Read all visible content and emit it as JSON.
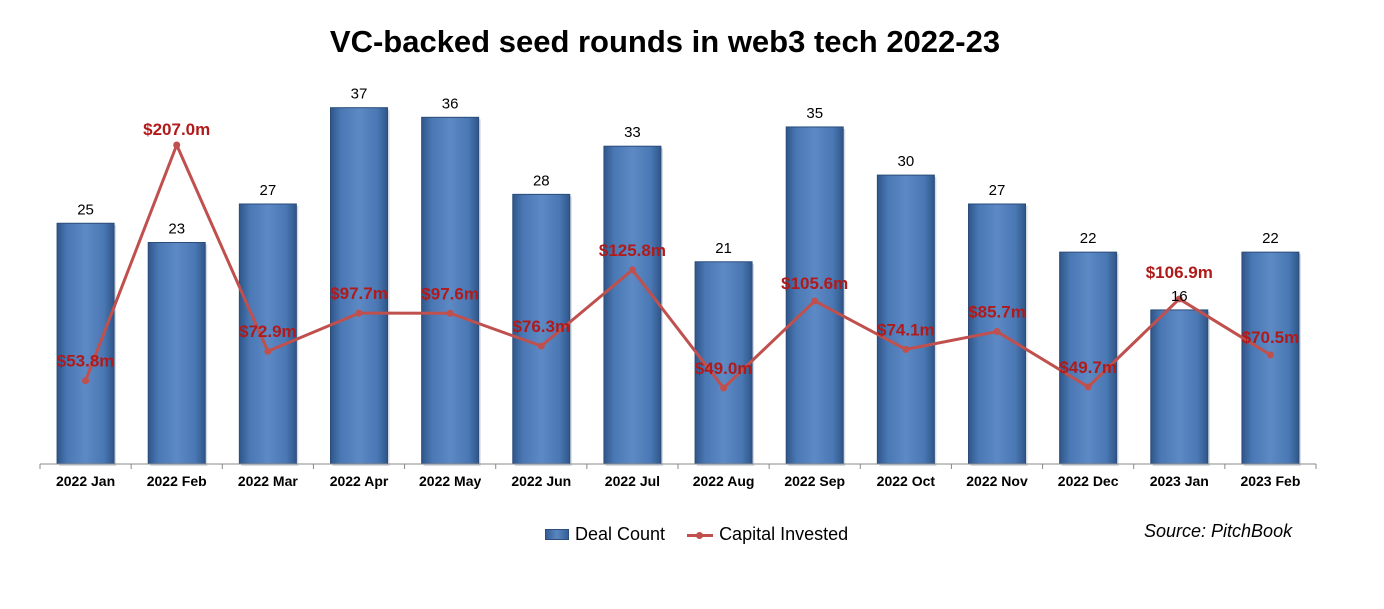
{
  "chart_data": {
    "type": "bar",
    "title": "VC-backed seed rounds in web3 tech 2022-23",
    "categories": [
      "2022 Jan",
      "2022 Feb",
      "2022 Mar",
      "2022 Apr",
      "2022 May",
      "2022 Jun",
      "2022 Jul",
      "2022 Aug",
      "2022 Sep",
      "2022 Oct",
      "2022 Nov",
      "2022 Dec",
      "2023 Jan",
      "2023 Feb"
    ],
    "series": [
      {
        "name": "Deal Count",
        "type": "bar",
        "color": "#4f81bd",
        "values": [
          25,
          23,
          27,
          37,
          36,
          28,
          33,
          21,
          35,
          30,
          27,
          22,
          16,
          22
        ],
        "labels": [
          "25",
          "23",
          "27",
          "37",
          "36",
          "28",
          "33",
          "21",
          "35",
          "30",
          "27",
          "22",
          "16",
          "22"
        ]
      },
      {
        "name": "Capital Invested",
        "type": "line",
        "color": "#c0504d",
        "values": [
          53.8,
          207.0,
          72.9,
          97.7,
          97.6,
          76.3,
          125.8,
          49.0,
          105.6,
          74.1,
          85.7,
          49.7,
          106.9,
          70.5
        ],
        "labels": [
          "$53.8m",
          "$207.0m",
          "$72.9m",
          "$97.7m",
          "$97.6m",
          "$76.3m",
          "$125.8m",
          "$49.0m",
          "$105.6m",
          "$74.1m",
          "$85.7m",
          "$49.7m",
          "$106.9m",
          "$70.5m"
        ]
      }
    ],
    "legend_position": "bottom",
    "grid": false
  },
  "legend": {
    "bar_label": "Deal Count",
    "line_label": "Capital Invested"
  },
  "source": "Source: PitchBook"
}
